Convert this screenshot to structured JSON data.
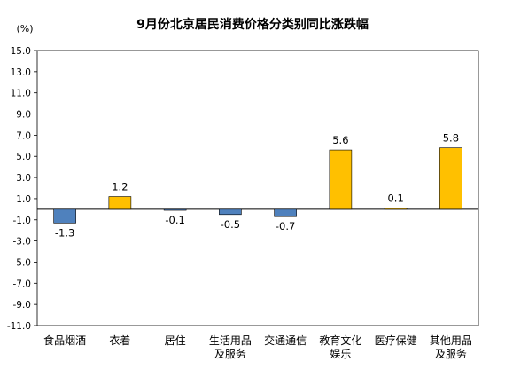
{
  "chart_data": {
    "type": "bar",
    "title": "9月份北京居民消费价格分类别同比涨跌幅",
    "ylabel": "(%)",
    "xlabel": "",
    "ylim": [
      -11.0,
      15.0
    ],
    "y_ticks": [
      "15.0",
      "13.0",
      "11.0",
      "9.0",
      "7.0",
      "5.0",
      "3.0",
      "1.0",
      "-1.0",
      "-3.0",
      "-5.0",
      "-7.0",
      "-9.0",
      "-11.0"
    ],
    "categories": [
      [
        "食品烟酒"
      ],
      [
        "衣着"
      ],
      [
        "居住"
      ],
      [
        "生活用品",
        "及服务"
      ],
      [
        "交通通信"
      ],
      [
        "教育文化",
        "娱乐"
      ],
      [
        "医疗保健"
      ],
      [
        "其他用品",
        "及服务"
      ]
    ],
    "values": [
      -1.3,
      1.2,
      -0.1,
      -0.5,
      -0.7,
      5.6,
      0.1,
      5.8
    ],
    "value_labels": [
      "-1.3",
      "1.2",
      "-0.1",
      "-0.5",
      "-0.7",
      "5.6",
      "0.1",
      "5.8"
    ],
    "grid": false,
    "colors": {
      "positive": "#FFC000",
      "negative": "#4F81BD",
      "outline": "#000000",
      "axis": "#000000",
      "text": "#000000"
    }
  }
}
